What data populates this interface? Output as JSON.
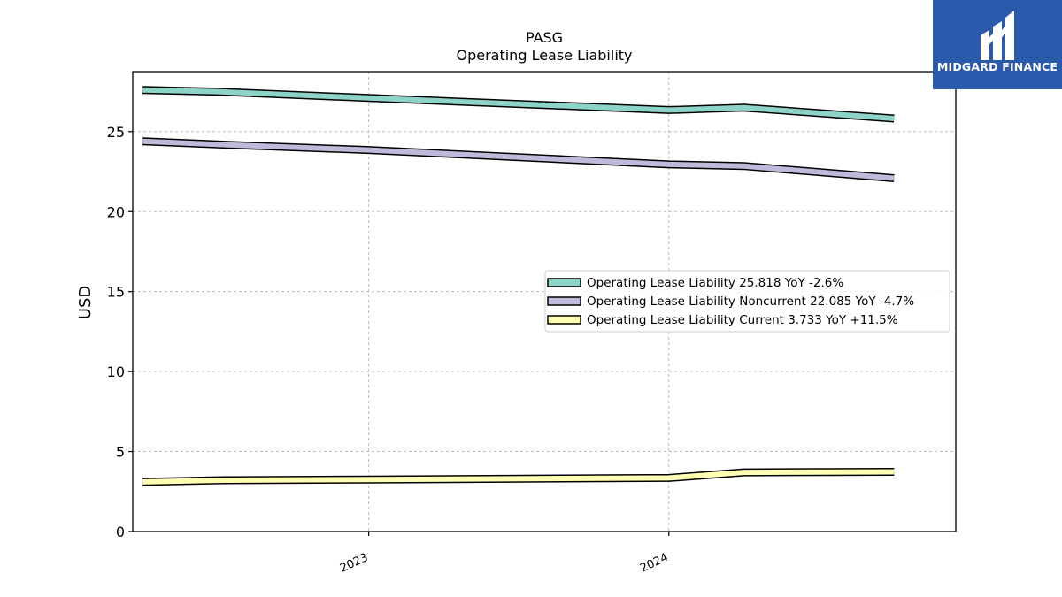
{
  "header": {
    "ticker": "PASG",
    "subtitle": "Operating Lease Liability"
  },
  "brand": {
    "name": "MIDGARD FINANCE",
    "color": "#2b5aad"
  },
  "chart_data": {
    "type": "line",
    "title": "PASG",
    "subtitle": "Operating Lease Liability",
    "ylabel": "USD",
    "xlabel": "",
    "ylim": [
      0,
      28.75
    ],
    "x_range": [
      "2022-03-20",
      "2024-12-15"
    ],
    "x_ticks": [
      {
        "date": "2023-01-01",
        "label": "2023"
      },
      {
        "date": "2024-01-01",
        "label": "2024"
      }
    ],
    "y_ticks": [
      0,
      5,
      10,
      15,
      20,
      25
    ],
    "grid": true,
    "legend_position": "center-right",
    "x": [
      "2022-04-01",
      "2022-07-01",
      "2023-01-01",
      "2024-01-01",
      "2024-04-01",
      "2024-10-01"
    ],
    "series": [
      {
        "name": "Operating Lease Liability",
        "legend_label": "Operating Lease Liability  25.818 YoY -2.6%",
        "color": "#8dd3c7",
        "values": [
          27.6,
          27.5,
          27.1,
          26.35,
          26.5,
          25.818
        ]
      },
      {
        "name": "Operating Lease Liability Noncurrent",
        "legend_label": "Operating Lease Liability Noncurrent  22.085 YoY -4.7%",
        "color": "#bebada",
        "values": [
          24.4,
          24.2,
          23.85,
          22.95,
          22.85,
          22.085
        ]
      },
      {
        "name": "Operating Lease Liability Current",
        "legend_label": "Operating Lease Liability Current  3.733 YoY +11.5%",
        "color": "#ffffb3",
        "values": [
          3.1,
          3.2,
          3.25,
          3.35,
          3.7,
          3.733
        ]
      }
    ]
  }
}
